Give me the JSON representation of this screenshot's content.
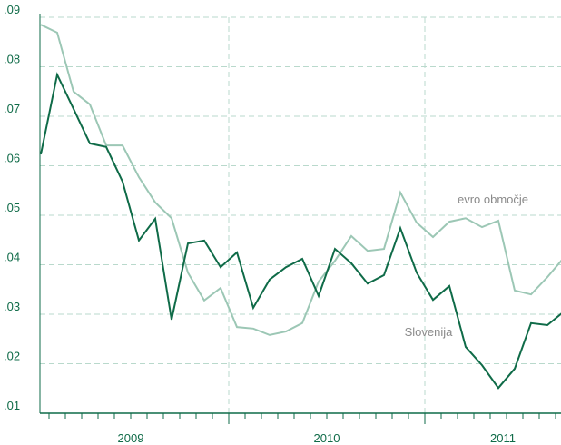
{
  "chart_data": {
    "type": "line",
    "categories": [
      null,
      null,
      null,
      null,
      null,
      null,
      null,
      null,
      null,
      null,
      null,
      null,
      null,
      null,
      null,
      null,
      null,
      null,
      null,
      null,
      null,
      null,
      null,
      null,
      null,
      null,
      null,
      null,
      null,
      null,
      null,
      null,
      null
    ],
    "year_labels": [
      "2009",
      "2010",
      "2011"
    ],
    "series": [
      {
        "name": "evro območje",
        "color": "#9cc7b5",
        "values": [
          0.0885,
          0.0869,
          0.075,
          0.0724,
          0.0641,
          0.0641,
          0.0577,
          0.0526,
          0.0494,
          0.0384,
          0.0328,
          0.0353,
          0.0274,
          0.0271,
          0.0258,
          0.0265,
          0.0282,
          0.0366,
          0.0408,
          0.0458,
          0.0428,
          0.0432,
          0.0546,
          0.0485,
          0.0456,
          0.0487,
          0.0494,
          0.0476,
          0.0489,
          0.0348,
          0.034,
          0.0375,
          0.0414
        ]
      },
      {
        "name": "Slovenija",
        "color": "#0f6b48",
        "values": [
          0.0623,
          0.0784,
          0.0715,
          0.0645,
          0.0638,
          0.0568,
          0.0449,
          0.0493,
          0.0289,
          0.0443,
          0.0449,
          0.0395,
          0.0425,
          0.0313,
          0.037,
          0.0395,
          0.0412,
          0.0337,
          0.0432,
          0.0403,
          0.0362,
          0.0379,
          0.0474,
          0.0384,
          0.0329,
          0.0357,
          0.0234,
          0.0197,
          0.0151,
          0.019,
          0.0282,
          0.0278,
          0.0305
        ]
      }
    ],
    "ylim": [
      0.01,
      0.09
    ],
    "yticks": [
      {
        "value": 0.01,
        "label": ".01"
      },
      {
        "value": 0.02,
        "label": ".02"
      },
      {
        "value": 0.03,
        "label": ".03"
      },
      {
        "value": 0.04,
        "label": ".04"
      },
      {
        "value": 0.05,
        "label": ".05"
      },
      {
        "value": 0.06,
        "label": ".06"
      },
      {
        "value": 0.07,
        "label": ".07"
      },
      {
        "value": 0.08,
        "label": ".08"
      },
      {
        "value": 0.09,
        "label": ".09"
      }
    ],
    "grid": true
  }
}
